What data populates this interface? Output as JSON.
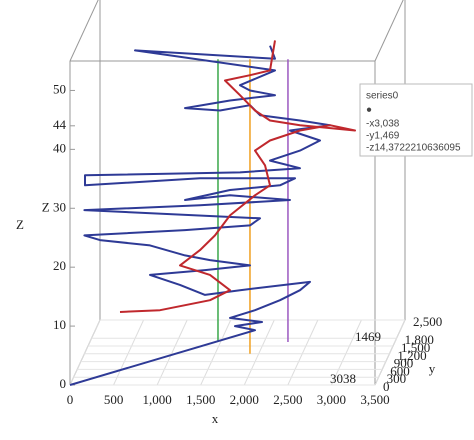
{
  "chart_data": {
    "type": "line3d",
    "x_label": "x",
    "y_label": "y",
    "z_label": "Z",
    "xlim": [
      0,
      3500
    ],
    "ylim": [
      0,
      2500
    ],
    "zlim": [
      0,
      55
    ],
    "xticks": [
      0,
      500,
      {
        "value": 1000,
        "label": "1,000"
      },
      {
        "value": 1500,
        "label": "1,500"
      },
      {
        "value": 2000,
        "label": "2,000"
      },
      {
        "value": 2500,
        "label": "2,500"
      },
      {
        "value": 3000,
        "label": "3,000"
      },
      {
        "value": 3500,
        "label": "3,500"
      }
    ],
    "yticks": [
      0,
      300,
      600,
      900,
      {
        "value": 1200,
        "label": "1,200"
      },
      {
        "value": 1500,
        "label": "1,500"
      },
      {
        "value": 1800,
        "label": "1,800"
      },
      {
        "value": 2500,
        "label": "2,500"
      }
    ],
    "zticks": [
      0,
      10,
      20,
      {
        "value": 30,
        "label": "Z 30"
      },
      40,
      44,
      50
    ],
    "series": [
      {
        "name": "series0",
        "color": "#2e3a96",
        "x": [
          0,
          1958,
          1728,
          2038,
          1671,
          1958,
          2245,
          2474,
          2589,
          1786,
          1384,
          1097,
          753,
          1384,
          1900,
          1441,
          1154,
          753,
          179,
          0,
          1154,
          1900,
          2015,
          0,
          1327,
          2359,
          1671,
          1154,
          1671,
          2245,
          2417,
          1327,
          7,
          7,
          1786,
          2474,
          2130,
          2474,
          2704,
          2359,
          2818,
          2474,
          2015,
          1900,
          1556,
          1154,
          1671,
          2187,
          1900,
          1786,
          2187,
          581,
          2187,
          2130
        ],
        "y": [
          0,
          1200,
          1200,
          1200,
          1200,
          1200,
          1200,
          1200,
          1200,
          1200,
          1200,
          1200,
          1200,
          1200,
          1200,
          1200,
          1200,
          1200,
          1200,
          1200,
          1200,
          1200,
          1200,
          1200,
          1200,
          1200,
          1200,
          1200,
          1200,
          1200,
          1200,
          1200,
          1200,
          1200,
          1200,
          1200,
          1200,
          1200,
          1200,
          1200,
          1200,
          1200,
          1200,
          1200,
          1200,
          1200,
          1200,
          1200,
          1200,
          1200,
          1200,
          1200,
          1200,
          1200
        ],
        "z": [
          0,
          4.0,
          4.7,
          5.4,
          6.1,
          7.4,
          9.1,
          10.8,
          12.2,
          10.8,
          10.0,
          11.7,
          13.4,
          14.2,
          15.0,
          15.9,
          16.7,
          18.4,
          19.3,
          20.1,
          21.0,
          21.8,
          23.0,
          24.4,
          25.2,
          26.1,
          26.9,
          26.1,
          27.8,
          28.6,
          29.8,
          29.8,
          28.6,
          30.3,
          30.8,
          31.5,
          32.8,
          34.5,
          36.2,
          37.9,
          38.8,
          39.6,
          40.5,
          42.2,
          41.3,
          41.7,
          43.0,
          43.9,
          44.7,
          45.6,
          48.1,
          51.5,
          50.1,
          52.3
        ]
      },
      {
        "color": "#c0282d",
        "x": [
          409,
          868,
          1441,
          1671,
          1441,
          1097,
          1327,
          1499,
          1671,
          1958,
          2130,
          2072,
          1958,
          2130,
          2474,
          2818,
          3105,
          2474,
          2130,
          1958,
          1786,
          1613,
          1900,
          2130,
          2187
        ],
        "y": [
          1200,
          1200,
          1200,
          1200,
          1200,
          1200,
          1200,
          1200,
          1200,
          1200,
          1200,
          1200,
          1200,
          1200,
          1200,
          1200,
          1200,
          1200,
          1200,
          1200,
          1200,
          1200,
          1200,
          1200,
          1200
        ],
        "z": [
          7.1,
          7.4,
          9.1,
          10.8,
          13.4,
          15.0,
          17.6,
          20.1,
          23.5,
          26.9,
          28.6,
          32.0,
          34.5,
          36.2,
          37.9,
          38.8,
          37.9,
          38.8,
          39.6,
          41.3,
          43.9,
          46.4,
          47.3,
          48.1,
          53.2
        ]
      }
    ],
    "guides": [
      {
        "x": 1533,
        "y": 1200,
        "z": [
          2,
          50
        ],
        "color": "#3aa84a"
      },
      {
        "x": 1900,
        "y": 1200,
        "z": [
          0,
          50
        ],
        "color": "#f0a020"
      },
      {
        "x": 2336,
        "y": 1200,
        "z": [
          2,
          50
        ],
        "color": "#9b59c0"
      }
    ],
    "crosshair_labels": [
      "1469",
      "3038"
    ],
    "tooltip": {
      "title": "series0",
      "marker": "●",
      "lines": [
        "-x3,038",
        "-y1,469",
        "-z14,3722210636095"
      ]
    }
  }
}
